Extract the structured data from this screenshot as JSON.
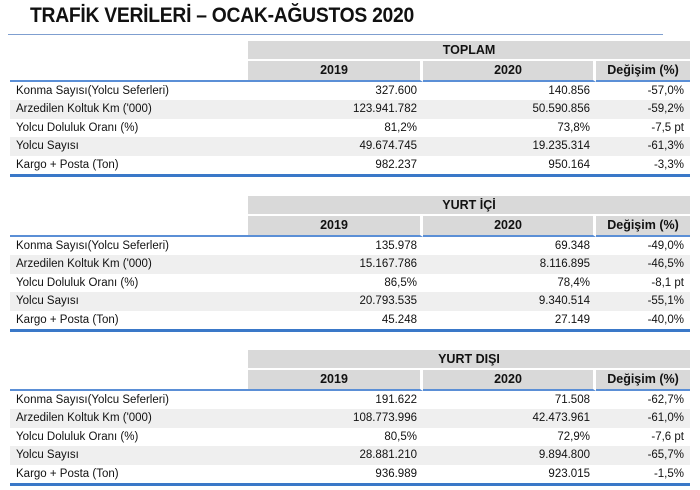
{
  "title": "TRAFİK VERİLERİ – OCAK-AĞUSTOS 2020",
  "columns": [
    "2019",
    "2020",
    "Değişim (%)"
  ],
  "sections": [
    {
      "name": "TOPLAM",
      "rows": [
        {
          "label": "Konma Sayısı(Yolcu Seferleri)",
          "y2019": "327.600",
          "y2020": "140.856",
          "change": "-57,0%"
        },
        {
          "label": "Arzedilen Koltuk Km ('000)",
          "y2019": "123.941.782",
          "y2020": "50.590.856",
          "change": "-59,2%"
        },
        {
          "label": "Yolcu Doluluk Oranı (%)",
          "y2019": "81,2%",
          "y2020": "73,8%",
          "change": "-7,5 pt"
        },
        {
          "label": "Yolcu Sayısı",
          "y2019": "49.674.745",
          "y2020": "19.235.314",
          "change": "-61,3%"
        },
        {
          "label": "Kargo + Posta (Ton)",
          "y2019": "982.237",
          "y2020": "950.164",
          "change": "-3,3%"
        }
      ]
    },
    {
      "name": "YURT İÇİ",
      "rows": [
        {
          "label": "Konma Sayısı(Yolcu Seferleri)",
          "y2019": "135.978",
          "y2020": "69.348",
          "change": "-49,0%"
        },
        {
          "label": "Arzedilen Koltuk Km ('000)",
          "y2019": "15.167.786",
          "y2020": "8.116.895",
          "change": "-46,5%"
        },
        {
          "label": "Yolcu Doluluk Oranı (%)",
          "y2019": "86,5%",
          "y2020": "78,4%",
          "change": "-8,1 pt"
        },
        {
          "label": "Yolcu Sayısı",
          "y2019": "20.793.535",
          "y2020": "9.340.514",
          "change": "-55,1%"
        },
        {
          "label": "Kargo + Posta (Ton)",
          "y2019": "45.248",
          "y2020": "27.149",
          "change": "-40,0%"
        }
      ]
    },
    {
      "name": "YURT DIŞI",
      "rows": [
        {
          "label": "Konma Sayısı(Yolcu Seferleri)",
          "y2019": "191.622",
          "y2020": "71.508",
          "change": "-62,7%"
        },
        {
          "label": "Arzedilen Koltuk Km ('000)",
          "y2019": "108.773.996",
          "y2020": "42.473.961",
          "change": "-61,0%"
        },
        {
          "label": "Yolcu Doluluk Oranı (%)",
          "y2019": "80,5%",
          "y2020": "72,9%",
          "change": "-7,6 pt"
        },
        {
          "label": "Yolcu Sayısı",
          "y2019": "28.881.210",
          "y2020": "9.894.800",
          "change": "-65,7%"
        },
        {
          "label": "Kargo + Posta (Ton)",
          "y2019": "936.989",
          "y2020": "923.015",
          "change": "-1,5%"
        }
      ]
    }
  ]
}
